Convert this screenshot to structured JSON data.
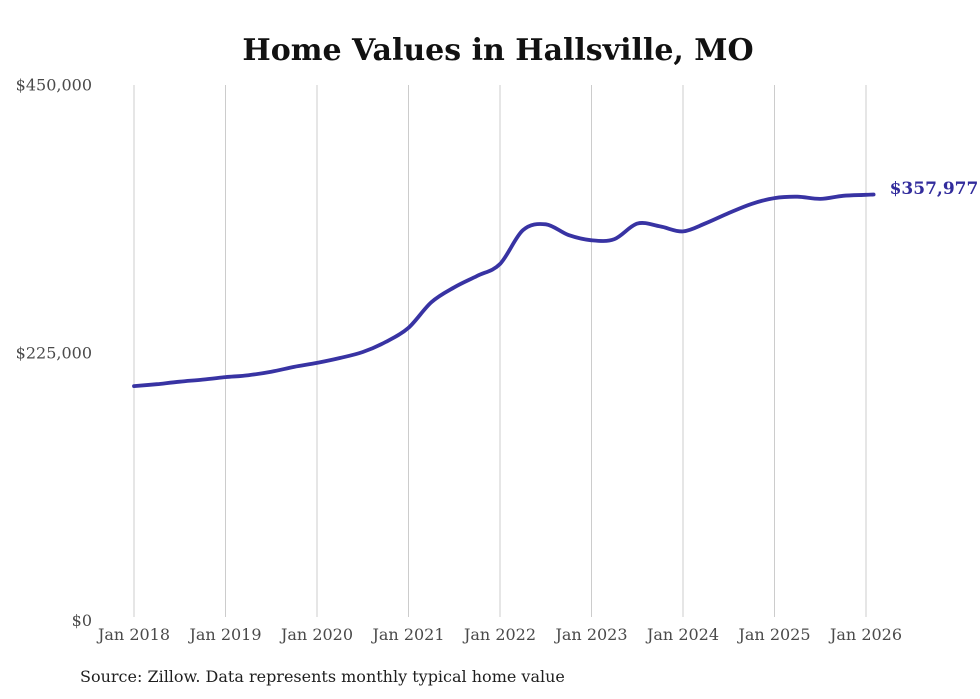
{
  "source_note": "Source: Zillow. Data represents monthly typical home value",
  "colors": {
    "line": "#3833a3",
    "final_label": "#322c9c",
    "grid": "#cccccc",
    "axis_text": "#4a4a4a",
    "title_text": "#111111",
    "source_text": "#1f1f1f",
    "background": "#ffffff"
  },
  "chart_data": {
    "type": "line",
    "title": "Home Values in Hallsville, MO",
    "series_name": "Typical home value",
    "final_value_label": "$357,977",
    "final_value": 357977,
    "ylim": [
      0,
      450000
    ],
    "grid": "vertical-year-lines",
    "legend": "none",
    "y_ticks": [
      {
        "label": "$450,000",
        "value": 450000
      },
      {
        "label": "$225,000",
        "value": 225000
      },
      {
        "label": "$0",
        "value": 0
      }
    ],
    "x_ticks": [
      "Jan 2018",
      "Jan 2019",
      "Jan 2020",
      "Jan 2021",
      "Jan 2022",
      "Jan 2023",
      "Jan 2024",
      "Jan 2025",
      "Jan 2026"
    ],
    "x": [
      "2018-01",
      "2018-04",
      "2018-07",
      "2018-10",
      "2019-01",
      "2019-04",
      "2019-07",
      "2019-10",
      "2020-01",
      "2020-04",
      "2020-07",
      "2020-10",
      "2021-01",
      "2021-04",
      "2021-07",
      "2021-10",
      "2022-01",
      "2022-04",
      "2022-07",
      "2022-10",
      "2023-01",
      "2023-04",
      "2023-07",
      "2023-10",
      "2024-01",
      "2024-04",
      "2024-07",
      "2024-10",
      "2025-01",
      "2025-04",
      "2025-07",
      "2025-10",
      "2026-01",
      "2026-02"
    ],
    "values": [
      197000,
      198600,
      200700,
      202400,
      204500,
      206100,
      209100,
      213100,
      216500,
      220600,
      225600,
      234000,
      246000,
      267500,
      280000,
      289600,
      299600,
      328000,
      332900,
      323900,
      319500,
      320500,
      333500,
      331200,
      327000,
      333900,
      342400,
      350100,
      355000,
      356100,
      354300,
      356900,
      357700,
      357977
    ]
  }
}
